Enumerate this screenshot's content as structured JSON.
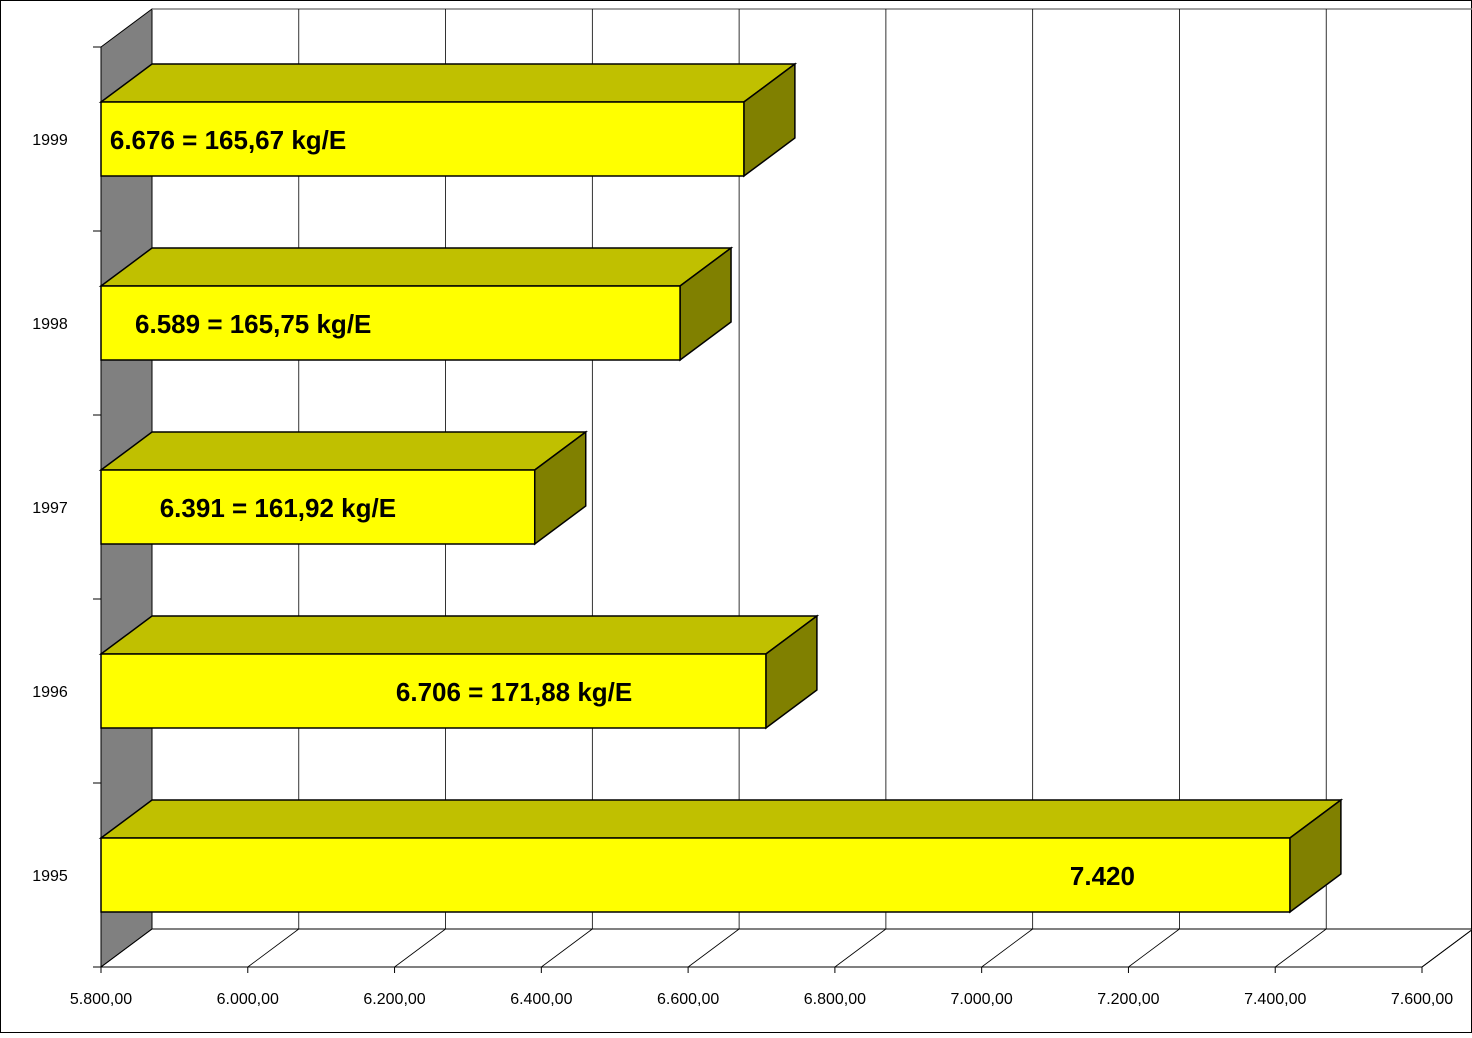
{
  "chart_data": {
    "type": "bar",
    "orientation": "horizontal",
    "style": "3d",
    "title": "",
    "xlabel": "",
    "ylabel": "",
    "categories": [
      "1995",
      "1996",
      "1997",
      "1998",
      "1999"
    ],
    "values": [
      7420,
      6706,
      6391,
      6589,
      6676
    ],
    "data_labels": [
      "7.420",
      "6.706 = 171,88 kg/E",
      "6.391 = 161,92 kg/E",
      "6.589 = 165,75 kg/E",
      "6.676  =  165,67 kg/E"
    ],
    "xlim": [
      5800,
      7600
    ],
    "x_tick_values": [
      5800,
      6000,
      6200,
      6400,
      6600,
      6800,
      7000,
      7200,
      7400,
      7600
    ],
    "x_tick_labels": [
      "5.800,00",
      "6.000,00",
      "6.200,00",
      "6.400,00",
      "6.600,00",
      "6.800,00",
      "7.000,00",
      "7.200,00",
      "7.400,00",
      "7.600,00"
    ],
    "grid": true,
    "legend": "none",
    "colors": {
      "bar_front": "#FFFF00",
      "bar_top": "#C0C000",
      "bar_side": "#808000",
      "side_wall": "#808080",
      "gridline": "#000000",
      "border": "#000000"
    }
  }
}
